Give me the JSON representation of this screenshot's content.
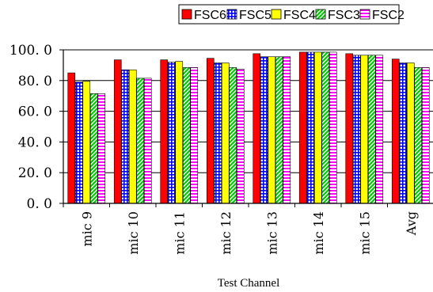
{
  "chart_data": {
    "type": "bar",
    "xlabel": "Test Channel",
    "ylabel": "",
    "ylim": [
      0,
      100
    ],
    "yticks": [
      "0. 0",
      "20. 0",
      "40. 0",
      "60. 0",
      "80. 0",
      "100. 0"
    ],
    "ytick_values": [
      0,
      20,
      40,
      60,
      80,
      100
    ],
    "grid": "horizontal",
    "legend": "top",
    "categories": [
      "mic 9",
      "mic 10",
      "mic 11",
      "mic 12",
      "mic 13",
      "mic 14",
      "mic 15",
      "Avg"
    ],
    "series": [
      {
        "name": "FSC6",
        "color": "#ff0000",
        "pattern": "solid",
        "values": [
          85,
          93.5,
          93.5,
          94.5,
          97.5,
          98.5,
          97.5,
          94
        ]
      },
      {
        "name": "FSC5",
        "color": "#0000ff",
        "pattern": "grid",
        "values": [
          79,
          87,
          92,
          91.5,
          95.5,
          98.5,
          96.5,
          91.5
        ]
      },
      {
        "name": "FSC4",
        "color": "#ffff00",
        "pattern": "solid",
        "values": [
          79.5,
          87,
          92.5,
          91.5,
          95.5,
          98.5,
          96.5,
          91.5
        ]
      },
      {
        "name": "FSC3",
        "color": "#00cc00",
        "pattern": "diagonal",
        "values": [
          71.5,
          81.5,
          88.5,
          88.5,
          95.5,
          98.5,
          96.5,
          88.5
        ]
      },
      {
        "name": "FSC2",
        "color": "#ff00ff",
        "pattern": "horizontal",
        "values": [
          71.5,
          81.5,
          88.5,
          87.5,
          95.5,
          98.5,
          96.5,
          88.5
        ]
      }
    ]
  }
}
